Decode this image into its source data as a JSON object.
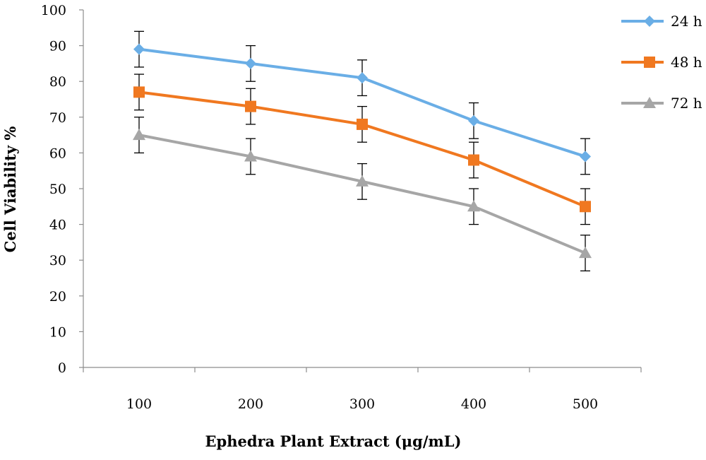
{
  "chart_data": {
    "type": "line",
    "title": "",
    "xlabel": "Ephedra Plant Extract (μg/mL)",
    "ylabel": "Cell Viability %",
    "categories": [
      "100",
      "200",
      "300",
      "400",
      "500"
    ],
    "ylim": [
      0,
      100
    ],
    "yticks": [
      "0",
      "10",
      "20",
      "30",
      "40",
      "50",
      "60",
      "70",
      "80",
      "90",
      "100"
    ],
    "grid": false,
    "legend_position": "right-top",
    "series": [
      {
        "name": "24 h",
        "color": "#6aaee6",
        "marker": "diamond",
        "values": [
          89,
          85,
          81,
          69,
          59
        ],
        "error": [
          5,
          5,
          5,
          5,
          5
        ]
      },
      {
        "name": "48 h",
        "color": "#f07820",
        "marker": "square",
        "values": [
          77,
          73,
          68,
          58,
          45
        ],
        "error": [
          5,
          5,
          5,
          5,
          5
        ]
      },
      {
        "name": "72 h",
        "color": "#a6a6a6",
        "marker": "triangle",
        "values": [
          65,
          59,
          52,
          45,
          32
        ],
        "error": [
          5,
          5,
          5,
          5,
          5
        ]
      }
    ]
  }
}
